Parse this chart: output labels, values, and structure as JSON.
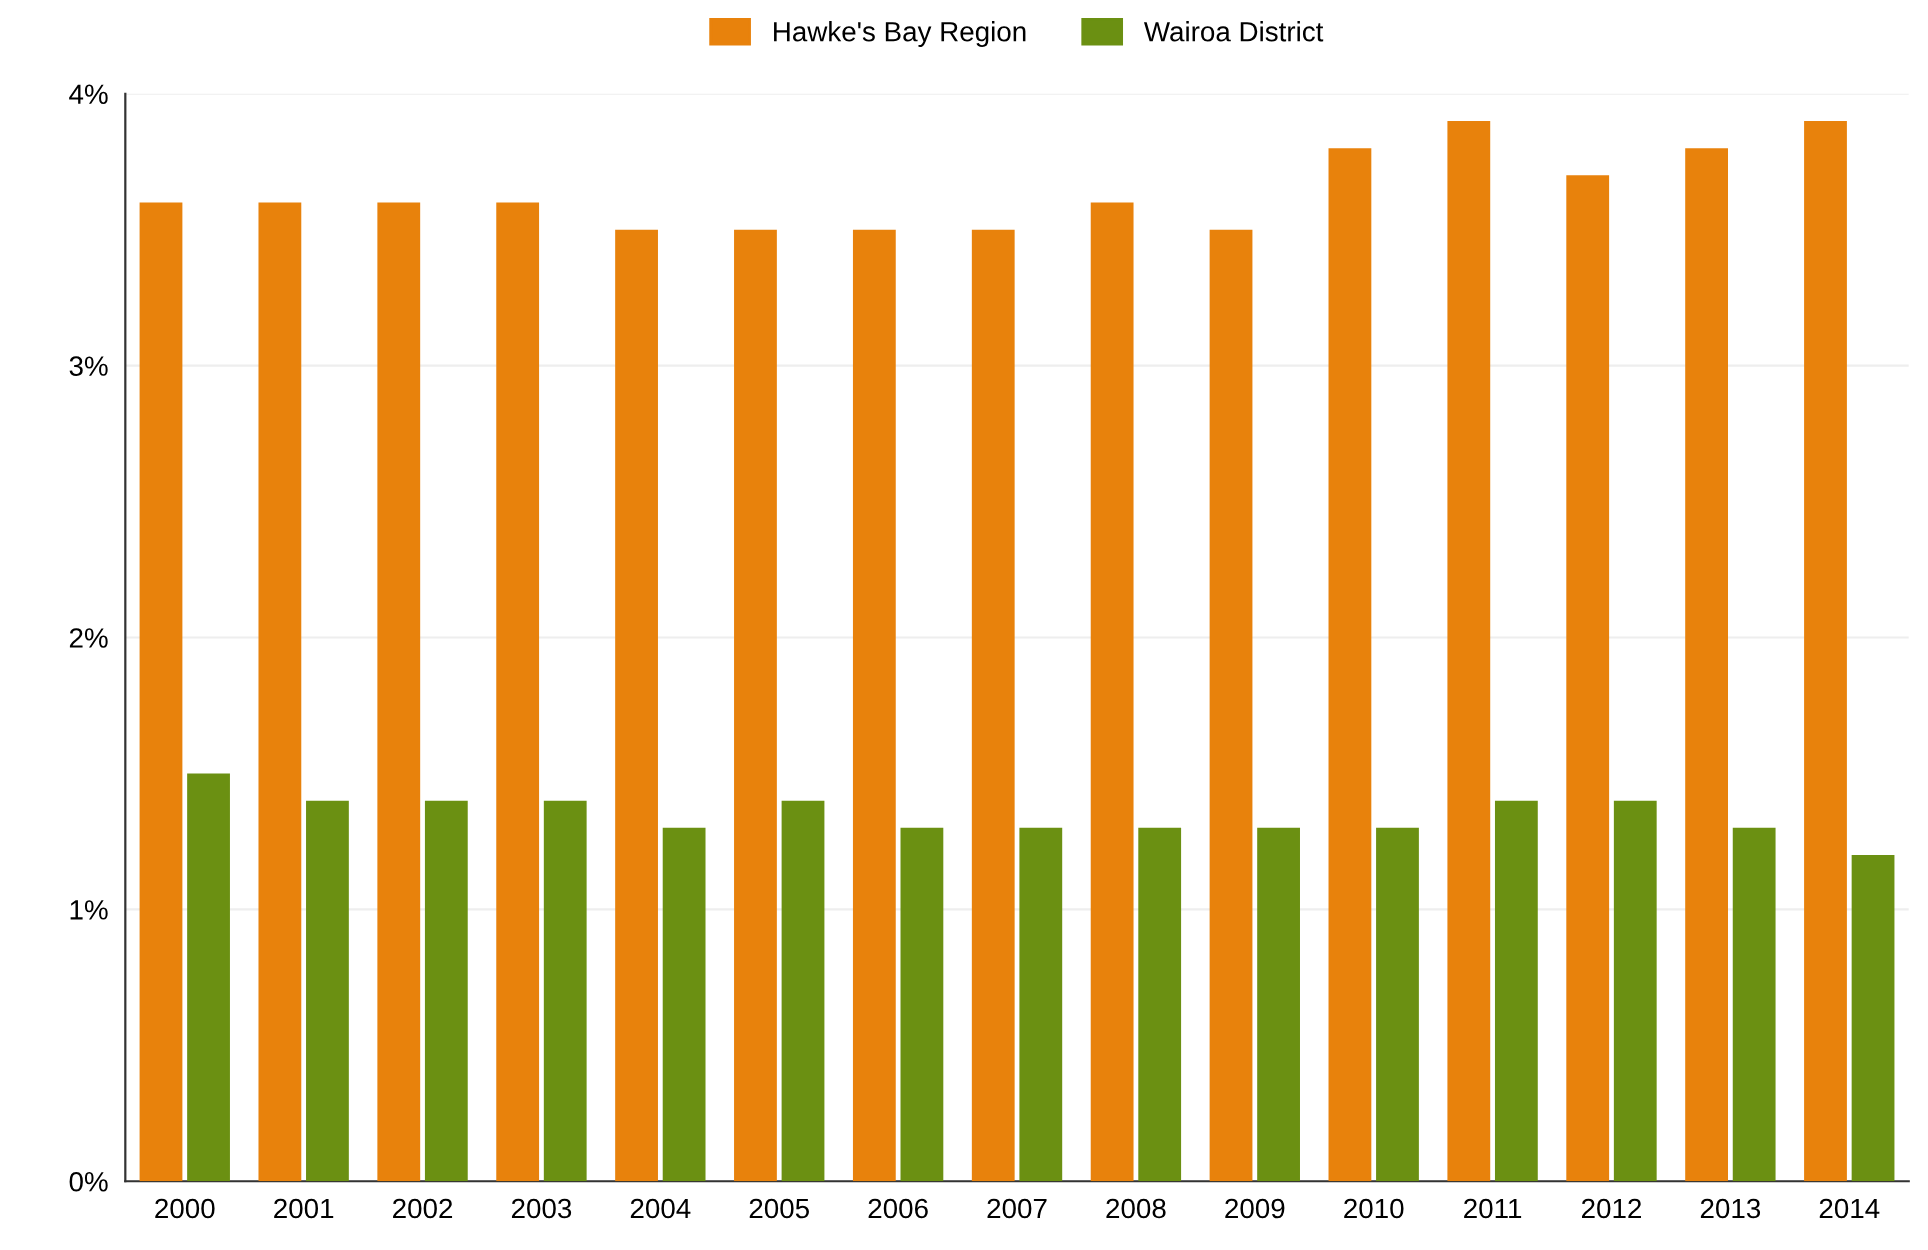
{
  "chart_data": {
    "type": "bar",
    "categories": [
      "2000",
      "2001",
      "2002",
      "2003",
      "2004",
      "2005",
      "2006",
      "2007",
      "2008",
      "2009",
      "2010",
      "2011",
      "2012",
      "2013",
      "2014"
    ],
    "series": [
      {
        "name": "Hawke's Bay Region",
        "color": "#e8820c",
        "values": [
          3.6,
          3.6,
          3.6,
          3.6,
          3.5,
          3.5,
          3.5,
          3.5,
          3.6,
          3.5,
          3.8,
          3.9,
          3.7,
          3.8,
          3.9
        ]
      },
      {
        "name": "Wairoa District",
        "color": "#6b9012",
        "values": [
          1.5,
          1.4,
          1.4,
          1.4,
          1.3,
          1.4,
          1.3,
          1.3,
          1.3,
          1.3,
          1.3,
          1.4,
          1.4,
          1.3,
          1.2
        ]
      }
    ],
    "ylim": [
      0,
      4
    ],
    "yticks": [
      {
        "value": 0,
        "label": "0%"
      },
      {
        "value": 1,
        "label": "1%"
      },
      {
        "value": 2,
        "label": "2%"
      },
      {
        "value": 3,
        "label": "3%"
      },
      {
        "value": 4,
        "label": "4%"
      }
    ],
    "grid": "y",
    "legend": "top"
  }
}
